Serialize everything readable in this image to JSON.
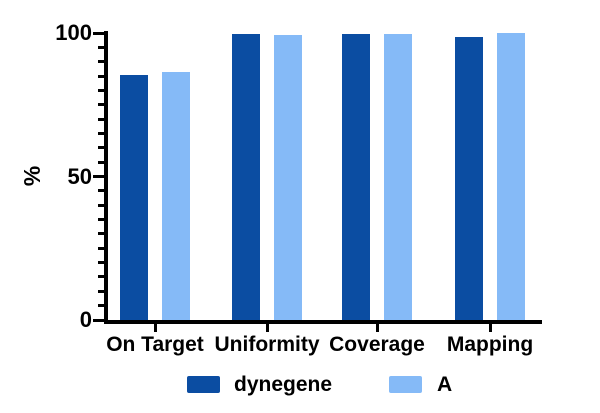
{
  "chart_data": {
    "type": "bar",
    "title": "",
    "xlabel": "",
    "ylabel": "%",
    "categories": [
      "On Target",
      "Uniformity",
      "Coverage",
      "Mapping"
    ],
    "series": [
      {
        "name": "dynegene",
        "color": "#0b4da2",
        "values": [
          85.5,
          99.5,
          99.8,
          98.7
        ]
      },
      {
        "name": "A",
        "color": "#85baf7",
        "values": [
          86.3,
          99.3,
          99.6,
          99.9
        ]
      }
    ],
    "ylim": [
      0,
      100
    ],
    "y_major_ticks": [
      0,
      50,
      100
    ],
    "y_major_tick_labels": [
      "0",
      "50",
      "100"
    ],
    "y_minor_tick_step": 5,
    "grid": false,
    "legend_position": "bottom",
    "axis_color": "#000000",
    "background_color": "#ffffff"
  }
}
